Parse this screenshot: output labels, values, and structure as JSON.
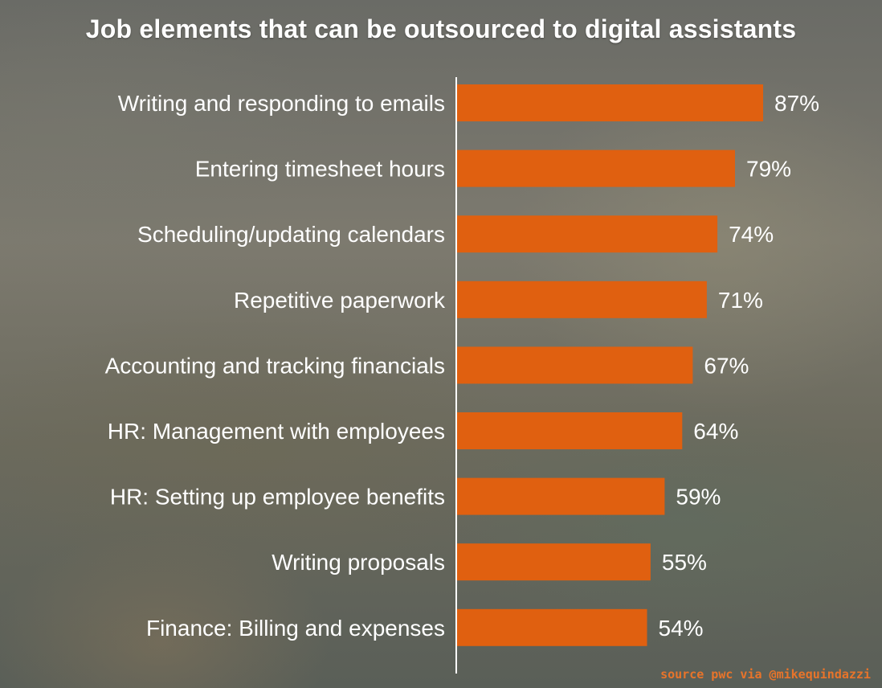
{
  "chart_data": {
    "type": "bar",
    "orientation": "horizontal",
    "title": "Job elements that can be outsourced to digital assistants",
    "categories": [
      "Writing and responding to emails",
      "Entering timesheet hours",
      "Scheduling/updating calendars",
      "Repetitive paperwork",
      "Accounting and tracking financials",
      "HR: Management with employees",
      "HR: Setting up employee benefits",
      "Writing proposals",
      "Finance: Billing and expenses"
    ],
    "values": [
      87,
      79,
      74,
      71,
      67,
      64,
      59,
      55,
      54
    ],
    "value_labels": [
      "87%",
      "79%",
      "74%",
      "71%",
      "67%",
      "64%",
      "59%",
      "55%",
      "54%"
    ],
    "unit": "%",
    "bar_color": "#e06010",
    "grid": false,
    "legend": "none"
  },
  "source_note": "source pwc via @mikequindazzi"
}
